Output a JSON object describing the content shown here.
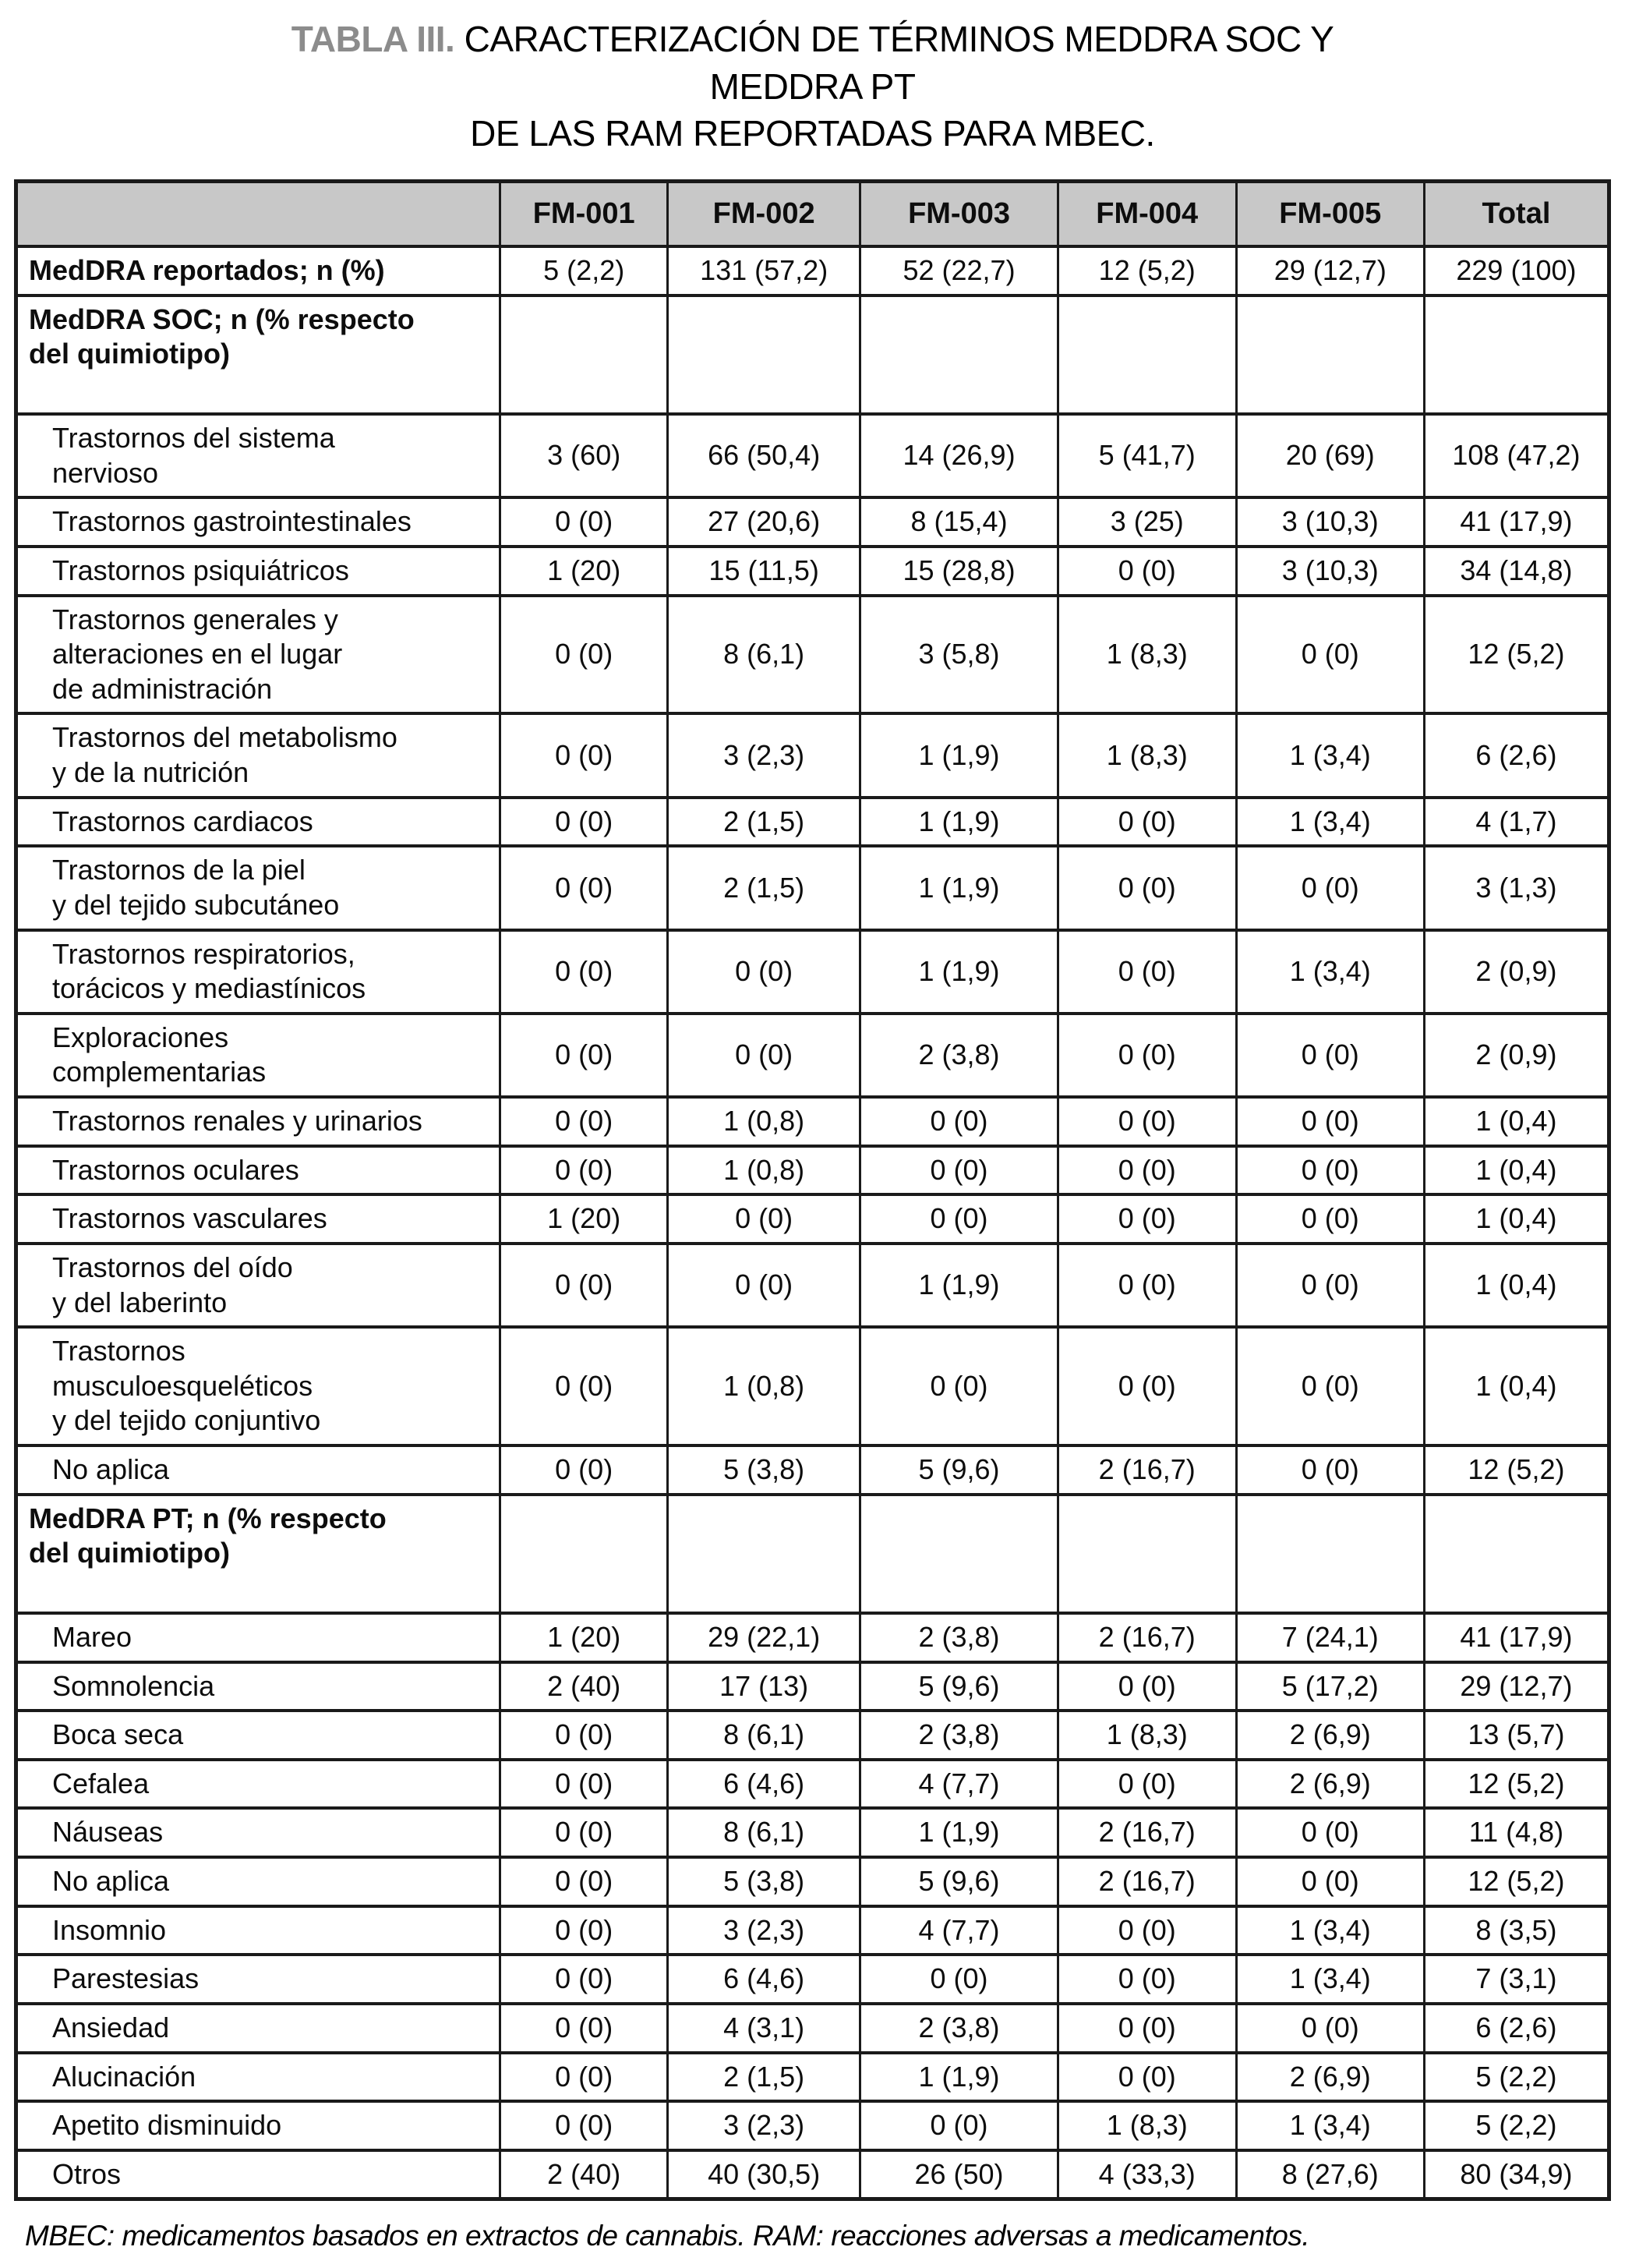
{
  "title": {
    "prefix": "TABLA III.",
    "line1": "CARACTERIZACIÓN DE TÉRMINOS MEDDRA SOC Y MEDDRA PT",
    "line2": "DE LAS RAM REPORTADAS PARA MBEC."
  },
  "colors": {
    "header_bg": "#c8c8c8",
    "title_prefix": "#8c8c8c",
    "border": "#1a1a1a"
  },
  "table": {
    "columns": [
      "",
      "FM-001",
      "FM-002",
      "FM-003",
      "FM-004",
      "FM-005",
      "Total"
    ],
    "rows": [
      {
        "type": "bold",
        "label": "MedDRA reportados; n (%)",
        "values": [
          "5 (2,2)",
          "131 (57,2)",
          "52 (22,7)",
          "12 (5,2)",
          "29 (12,7)",
          "229 (100)"
        ]
      },
      {
        "type": "section",
        "label": "MedDRA SOC; n (% respecto\ndel quimiotipo)",
        "values": [
          "",
          "",
          "",
          "",
          "",
          ""
        ]
      },
      {
        "type": "item",
        "label": "Trastornos del sistema\nnervioso",
        "values": [
          "3 (60)",
          "66 (50,4)",
          "14 (26,9)",
          "5 (41,7)",
          "20 (69)",
          "108 (47,2)"
        ]
      },
      {
        "type": "item",
        "label": "Trastornos gastrointestinales",
        "values": [
          "0 (0)",
          "27 (20,6)",
          "8 (15,4)",
          "3 (25)",
          "3 (10,3)",
          "41 (17,9)"
        ]
      },
      {
        "type": "item",
        "label": "Trastornos psiquiátricos",
        "values": [
          "1 (20)",
          "15 (11,5)",
          "15 (28,8)",
          "0 (0)",
          "3 (10,3)",
          "34 (14,8)"
        ]
      },
      {
        "type": "item",
        "label": "Trastornos generales y\nalteraciones en el lugar\nde administración",
        "values": [
          "0 (0)",
          "8 (6,1)",
          "3 (5,8)",
          "1 (8,3)",
          "0 (0)",
          "12 (5,2)"
        ]
      },
      {
        "type": "item",
        "label": "Trastornos del metabolismo\ny de la nutrición",
        "values": [
          "0 (0)",
          "3 (2,3)",
          "1 (1,9)",
          "1 (8,3)",
          "1 (3,4)",
          "6 (2,6)"
        ]
      },
      {
        "type": "item",
        "label": "Trastornos cardiacos",
        "values": [
          "0 (0)",
          "2 (1,5)",
          "1 (1,9)",
          "0 (0)",
          "1 (3,4)",
          "4 (1,7)"
        ]
      },
      {
        "type": "item",
        "label": "Trastornos de la piel\ny del tejido subcutáneo",
        "values": [
          "0 (0)",
          "2 (1,5)",
          "1 (1,9)",
          "0 (0)",
          "0 (0)",
          "3 (1,3)"
        ]
      },
      {
        "type": "item",
        "label": "Trastornos respiratorios,\ntorácicos y mediastínicos",
        "values": [
          "0 (0)",
          "0 (0)",
          "1 (1,9)",
          "0 (0)",
          "1 (3,4)",
          "2 (0,9)"
        ]
      },
      {
        "type": "item",
        "label": "Exploraciones\ncomplementarias",
        "values": [
          "0 (0)",
          "0 (0)",
          "2 (3,8)",
          "0 (0)",
          "0 (0)",
          "2 (0,9)"
        ]
      },
      {
        "type": "item",
        "label": "Trastornos renales y urinarios",
        "values": [
          "0 (0)",
          "1 (0,8)",
          "0 (0)",
          "0 (0)",
          "0 (0)",
          "1 (0,4)"
        ]
      },
      {
        "type": "item",
        "label": "Trastornos oculares",
        "values": [
          "0 (0)",
          "1 (0,8)",
          "0 (0)",
          "0 (0)",
          "0 (0)",
          "1 (0,4)"
        ]
      },
      {
        "type": "item",
        "label": "Trastornos vasculares",
        "values": [
          "1 (20)",
          "0 (0)",
          "0 (0)",
          "0 (0)",
          "0 (0)",
          "1 (0,4)"
        ]
      },
      {
        "type": "item",
        "label": "Trastornos del oído\ny del laberinto",
        "values": [
          "0 (0)",
          "0 (0)",
          "1 (1,9)",
          "0 (0)",
          "0 (0)",
          "1 (0,4)"
        ]
      },
      {
        "type": "item",
        "label": "Trastornos\nmusculoesqueléticos\ny del tejido conjuntivo",
        "values": [
          "0 (0)",
          "1 (0,8)",
          "0 (0)",
          "0 (0)",
          "0 (0)",
          "1 (0,4)"
        ]
      },
      {
        "type": "item",
        "label": "No aplica",
        "values": [
          "0 (0)",
          "5 (3,8)",
          "5 (9,6)",
          "2 (16,7)",
          "0 (0)",
          "12 (5,2)"
        ]
      },
      {
        "type": "section",
        "label": "MedDRA PT; n (% respecto\ndel quimiotipo)",
        "values": [
          "",
          "",
          "",
          "",
          "",
          ""
        ]
      },
      {
        "type": "item",
        "label": "Mareo",
        "values": [
          "1 (20)",
          "29 (22,1)",
          "2 (3,8)",
          "2 (16,7)",
          "7 (24,1)",
          "41 (17,9)"
        ]
      },
      {
        "type": "item",
        "label": "Somnolencia",
        "values": [
          "2 (40)",
          "17 (13)",
          "5 (9,6)",
          "0 (0)",
          "5 (17,2)",
          "29 (12,7)"
        ]
      },
      {
        "type": "item",
        "label": "Boca seca",
        "values": [
          "0 (0)",
          "8 (6,1)",
          "2 (3,8)",
          "1 (8,3)",
          "2 (6,9)",
          "13 (5,7)"
        ]
      },
      {
        "type": "item",
        "label": "Cefalea",
        "values": [
          "0 (0)",
          "6 (4,6)",
          "4 (7,7)",
          "0 (0)",
          "2 (6,9)",
          "12 (5,2)"
        ]
      },
      {
        "type": "item",
        "label": "Náuseas",
        "values": [
          "0 (0)",
          "8 (6,1)",
          "1 (1,9)",
          "2 (16,7)",
          "0 (0)",
          "11 (4,8)"
        ]
      },
      {
        "type": "item",
        "label": "No aplica",
        "values": [
          "0 (0)",
          "5 (3,8)",
          "5 (9,6)",
          "2 (16,7)",
          "0 (0)",
          "12 (5,2)"
        ]
      },
      {
        "type": "item",
        "label": "Insomnio",
        "values": [
          "0 (0)",
          "3 (2,3)",
          "4 (7,7)",
          "0 (0)",
          "1 (3,4)",
          "8 (3,5)"
        ]
      },
      {
        "type": "item",
        "label": "Parestesias",
        "values": [
          "0 (0)",
          "6 (4,6)",
          "0 (0)",
          "0 (0)",
          "1 (3,4)",
          "7 (3,1)"
        ]
      },
      {
        "type": "item",
        "label": "Ansiedad",
        "values": [
          "0 (0)",
          "4 (3,1)",
          "2 (3,8)",
          "0 (0)",
          "0 (0)",
          "6 (2,6)"
        ]
      },
      {
        "type": "item",
        "label": "Alucinación",
        "values": [
          "0 (0)",
          "2 (1,5)",
          "1 (1,9)",
          "0 (0)",
          "2 (6,9)",
          "5 (2,2)"
        ]
      },
      {
        "type": "item",
        "label": "Apetito disminuido",
        "values": [
          "0 (0)",
          "3 (2,3)",
          "0 (0)",
          "1 (8,3)",
          "1 (3,4)",
          "5 (2,2)"
        ]
      },
      {
        "type": "item",
        "label": "Otros",
        "values": [
          "2 (40)",
          "40 (30,5)",
          "26 (50)",
          "4 (33,3)",
          "8 (27,6)",
          "80 (34,9)"
        ]
      }
    ]
  },
  "footnote": "MBEC: medicamentos basados en extractos de cannabis. RAM: reacciones adversas a medicamentos."
}
